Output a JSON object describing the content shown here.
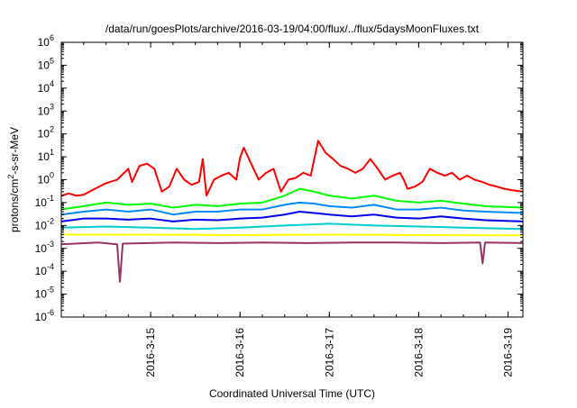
{
  "chart_data": {
    "type": "line",
    "title": "/data/run/goesPlots/archive/2016-03-19/04:00/flux/../flux/5daysMoonFluxes.txt",
    "xlabel": "Coordinated Universal Time (UTC)",
    "ylabel": "protons/cm²-s-sr-MeV",
    "yscale": "log",
    "ylim": [
      1e-06,
      1000000.0
    ],
    "xlim": [
      "2016-03-14 00:00",
      "2016-03-19 04:00"
    ],
    "grid": false,
    "legend": "none",
    "y_ticks": [
      {
        "value": 1e-06,
        "exp": "-6"
      },
      {
        "value": 1e-05,
        "exp": "-5"
      },
      {
        "value": 0.0001,
        "exp": "-4"
      },
      {
        "value": 0.001,
        "exp": "-3"
      },
      {
        "value": 0.01,
        "exp": "-2"
      },
      {
        "value": 0.1,
        "exp": "-1"
      },
      {
        "value": 1,
        "exp": "0"
      },
      {
        "value": 10.0,
        "exp": "1"
      },
      {
        "value": 100.0,
        "exp": "2"
      },
      {
        "value": 1000.0,
        "exp": "3"
      },
      {
        "value": 10000.0,
        "exp": "4"
      },
      {
        "value": 100000.0,
        "exp": "5"
      },
      {
        "value": 1000000.0,
        "exp": "6"
      }
    ],
    "x_ticks": [
      "2016-3-15",
      "2016-3-16",
      "2016-3-17",
      "2016-3-18",
      "2016-3-19"
    ],
    "series": [
      {
        "color": "#ff0000",
        "points": [
          [
            "2016-03-14 00:00",
            0.2
          ],
          [
            "2016-03-14 02:00",
            0.25
          ],
          [
            "2016-03-14 04:00",
            0.2
          ],
          [
            "2016-03-14 06:00",
            0.22
          ],
          [
            "2016-03-14 09:00",
            0.4
          ],
          [
            "2016-03-14 12:00",
            0.7
          ],
          [
            "2016-03-14 15:00",
            1.0
          ],
          [
            "2016-03-14 18:00",
            3.0
          ],
          [
            "2016-03-14 19:00",
            0.8
          ],
          [
            "2016-03-14 21:00",
            4.0
          ],
          [
            "2016-03-14 23:00",
            5.0
          ],
          [
            "2016-03-15 01:00",
            3.0
          ],
          [
            "2016-03-15 03:00",
            0.3
          ],
          [
            "2016-03-15 05:00",
            0.5
          ],
          [
            "2016-03-15 07:00",
            3.0
          ],
          [
            "2016-03-15 09:00",
            1.0
          ],
          [
            "2016-03-15 11:00",
            0.6
          ],
          [
            "2016-03-15 13:00",
            0.8
          ],
          [
            "2016-03-15 14:00",
            8.0
          ],
          [
            "2016-03-15 15:00",
            0.2
          ],
          [
            "2016-03-15 17:00",
            1.0
          ],
          [
            "2016-03-15 19:00",
            1.5
          ],
          [
            "2016-03-15 21:00",
            2.0
          ],
          [
            "2016-03-15 23:00",
            1.0
          ],
          [
            "2016-03-16 00:00",
            9.0
          ],
          [
            "2016-03-16 01:00",
            25.0
          ],
          [
            "2016-03-16 03:00",
            5.0
          ],
          [
            "2016-03-16 05:00",
            1.0
          ],
          [
            "2016-03-16 07:00",
            2.0
          ],
          [
            "2016-03-16 09:00",
            3.0
          ],
          [
            "2016-03-16 11:00",
            0.3
          ],
          [
            "2016-03-16 13:00",
            1.0
          ],
          [
            "2016-03-16 15:00",
            1.2
          ],
          [
            "2016-03-16 17:00",
            2.0
          ],
          [
            "2016-03-16 19:00",
            1.5
          ],
          [
            "2016-03-16 21:00",
            50.0
          ],
          [
            "2016-03-16 23:00",
            15.0
          ],
          [
            "2016-03-17 01:00",
            8.0
          ],
          [
            "2016-03-17 03:00",
            4.0
          ],
          [
            "2016-03-17 05:00",
            3.0
          ],
          [
            "2016-03-17 07:00",
            2.0
          ],
          [
            "2016-03-17 09:00",
            3.0
          ],
          [
            "2016-03-17 11:00",
            8.0
          ],
          [
            "2016-03-17 13:00",
            3.0
          ],
          [
            "2016-03-17 15:00",
            1.0
          ],
          [
            "2016-03-17 17:00",
            1.5
          ],
          [
            "2016-03-17 19:00",
            2.0
          ],
          [
            "2016-03-17 20:00",
            1.0
          ],
          [
            "2016-03-17 21:00",
            0.4
          ],
          [
            "2016-03-17 23:00",
            0.5
          ],
          [
            "2016-03-18 01:00",
            0.8
          ],
          [
            "2016-03-18 03:00",
            3.0
          ],
          [
            "2016-03-18 05:00",
            2.0
          ],
          [
            "2016-03-18 07:00",
            1.5
          ],
          [
            "2016-03-18 09:00",
            2.0
          ],
          [
            "2016-03-18 11:00",
            1.0
          ],
          [
            "2016-03-18 13:00",
            1.5
          ],
          [
            "2016-03-18 15:00",
            1.0
          ],
          [
            "2016-03-18 17:00",
            0.8
          ],
          [
            "2016-03-18 19:00",
            0.6
          ],
          [
            "2016-03-18 21:00",
            0.5
          ],
          [
            "2016-03-18 23:00",
            0.4
          ],
          [
            "2016-03-19 01:00",
            0.35
          ],
          [
            "2016-03-19 04:00",
            0.3
          ]
        ]
      },
      {
        "color": "#00ff00",
        "points": [
          [
            "2016-03-14 00:00",
            0.05
          ],
          [
            "2016-03-14 06:00",
            0.07
          ],
          [
            "2016-03-14 12:00",
            0.1
          ],
          [
            "2016-03-14 18:00",
            0.08
          ],
          [
            "2016-03-15 00:00",
            0.09
          ],
          [
            "2016-03-15 06:00",
            0.06
          ],
          [
            "2016-03-15 12:00",
            0.08
          ],
          [
            "2016-03-15 18:00",
            0.07
          ],
          [
            "2016-03-16 00:00",
            0.09
          ],
          [
            "2016-03-16 06:00",
            0.1
          ],
          [
            "2016-03-16 12:00",
            0.2
          ],
          [
            "2016-03-16 16:00",
            0.4
          ],
          [
            "2016-03-16 20:00",
            0.3
          ],
          [
            "2016-03-17 00:00",
            0.2
          ],
          [
            "2016-03-17 06:00",
            0.15
          ],
          [
            "2016-03-17 12:00",
            0.2
          ],
          [
            "2016-03-17 18:00",
            0.12
          ],
          [
            "2016-03-18 00:00",
            0.1
          ],
          [
            "2016-03-18 06:00",
            0.12
          ],
          [
            "2016-03-18 12:00",
            0.09
          ],
          [
            "2016-03-18 18:00",
            0.07
          ],
          [
            "2016-03-19 04:00",
            0.06
          ]
        ]
      },
      {
        "color": "#0088ff",
        "points": [
          [
            "2016-03-14 00:00",
            0.03
          ],
          [
            "2016-03-14 06:00",
            0.04
          ],
          [
            "2016-03-14 12:00",
            0.05
          ],
          [
            "2016-03-14 18:00",
            0.04
          ],
          [
            "2016-03-15 00:00",
            0.05
          ],
          [
            "2016-03-15 06:00",
            0.03
          ],
          [
            "2016-03-15 12:00",
            0.04
          ],
          [
            "2016-03-15 18:00",
            0.04
          ],
          [
            "2016-03-16 00:00",
            0.05
          ],
          [
            "2016-03-16 06:00",
            0.05
          ],
          [
            "2016-03-16 12:00",
            0.08
          ],
          [
            "2016-03-16 16:00",
            0.1
          ],
          [
            "2016-03-16 20:00",
            0.09
          ],
          [
            "2016-03-17 00:00",
            0.07
          ],
          [
            "2016-03-17 06:00",
            0.06
          ],
          [
            "2016-03-17 12:00",
            0.08
          ],
          [
            "2016-03-17 18:00",
            0.05
          ],
          [
            "2016-03-18 00:00",
            0.05
          ],
          [
            "2016-03-18 06:00",
            0.06
          ],
          [
            "2016-03-18 12:00",
            0.045
          ],
          [
            "2016-03-18 18:00",
            0.04
          ],
          [
            "2016-03-19 04:00",
            0.035
          ]
        ]
      },
      {
        "color": "#0000ee",
        "points": [
          [
            "2016-03-14 00:00",
            0.015
          ],
          [
            "2016-03-14 06:00",
            0.02
          ],
          [
            "2016-03-14 12:00",
            0.02
          ],
          [
            "2016-03-14 18:00",
            0.018
          ],
          [
            "2016-03-15 00:00",
            0.02
          ],
          [
            "2016-03-15 06:00",
            0.015
          ],
          [
            "2016-03-15 12:00",
            0.018
          ],
          [
            "2016-03-15 18:00",
            0.017
          ],
          [
            "2016-03-16 00:00",
            0.02
          ],
          [
            "2016-03-16 06:00",
            0.022
          ],
          [
            "2016-03-16 12:00",
            0.03
          ],
          [
            "2016-03-16 16:00",
            0.04
          ],
          [
            "2016-03-16 20:00",
            0.035
          ],
          [
            "2016-03-17 00:00",
            0.03
          ],
          [
            "2016-03-17 06:00",
            0.025
          ],
          [
            "2016-03-17 12:00",
            0.03
          ],
          [
            "2016-03-17 18:00",
            0.022
          ],
          [
            "2016-03-18 00:00",
            0.02
          ],
          [
            "2016-03-18 06:00",
            0.025
          ],
          [
            "2016-03-18 12:00",
            0.02
          ],
          [
            "2016-03-18 18:00",
            0.017
          ],
          [
            "2016-03-19 04:00",
            0.015
          ]
        ]
      },
      {
        "color": "#00cccc",
        "points": [
          [
            "2016-03-14 00:00",
            0.008
          ],
          [
            "2016-03-14 12:00",
            0.009
          ],
          [
            "2016-03-15 00:00",
            0.008
          ],
          [
            "2016-03-15 12:00",
            0.007
          ],
          [
            "2016-03-16 00:00",
            0.008
          ],
          [
            "2016-03-16 12:00",
            0.01
          ],
          [
            "2016-03-17 00:00",
            0.012
          ],
          [
            "2016-03-17 12:00",
            0.01
          ],
          [
            "2016-03-18 00:00",
            0.009
          ],
          [
            "2016-03-18 12:00",
            0.008
          ],
          [
            "2016-03-19 04:00",
            0.007
          ]
        ]
      },
      {
        "color": "#ffff00",
        "points": [
          [
            "2016-03-14 00:00",
            0.004
          ],
          [
            "2016-03-15 00:00",
            0.004
          ],
          [
            "2016-03-16 00:00",
            0.0038
          ],
          [
            "2016-03-17 00:00",
            0.004
          ],
          [
            "2016-03-18 00:00",
            0.0038
          ],
          [
            "2016-03-19 04:00",
            0.0037
          ]
        ]
      },
      {
        "color": "#993366",
        "points": [
          [
            "2016-03-14 00:00",
            0.0015
          ],
          [
            "2016-03-14 10:00",
            0.0018
          ],
          [
            "2016-03-14 15:00",
            0.0015
          ],
          [
            "2016-03-14 15:45",
            3.5e-05
          ],
          [
            "2016-03-14 16:30",
            0.0016
          ],
          [
            "2016-03-15 06:00",
            0.0018
          ],
          [
            "2016-03-15 18:00",
            0.0017
          ],
          [
            "2016-03-16 06:00",
            0.0018
          ],
          [
            "2016-03-16 18:00",
            0.0017
          ],
          [
            "2016-03-17 06:00",
            0.0018
          ],
          [
            "2016-03-17 18:00",
            0.0018
          ],
          [
            "2016-03-18 06:00",
            0.0017
          ],
          [
            "2016-03-18 16:30",
            0.0018
          ],
          [
            "2016-03-18 17:10",
            0.00022
          ],
          [
            "2016-03-18 17:50",
            0.0018
          ],
          [
            "2016-03-19 04:00",
            0.0017
          ]
        ]
      }
    ]
  }
}
